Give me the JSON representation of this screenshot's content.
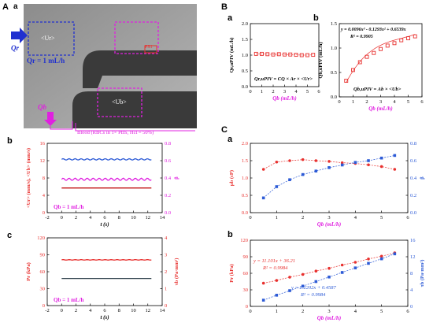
{
  "panel_labels": {
    "A": "A",
    "Aa": "a",
    "Ab": "b",
    "Ac": "c",
    "B": "B",
    "Ba": "a",
    "Bb": "b",
    "C": "C",
    "Ca": "a",
    "Cb": "b"
  },
  "micrograph": {
    "ur_box": "<Ur>",
    "ub_box": "<Ub>",
    "qr_arrow": "Qr",
    "qr_text": "Qr = 1 mL/h",
    "qb_arrow": "Qb",
    "blood_text": "Blood (RBCs in 1× PBS, Hct = 50%)",
    "pressure_box": "PS1"
  },
  "colors": {
    "red": "#e8312f",
    "blue": "#2d5bd6",
    "magenta": "#e020e0",
    "dark": "#3a4a55",
    "box_blue": "#2030d0"
  },
  "chart_data": [
    {
      "id": "Ab",
      "type": "line",
      "xlabel": "t (s)",
      "ylabel_left": "<Ur> (mm/s), <Ub> (mm/s)",
      "ylabel_right": "β",
      "xlim": [
        -2,
        14
      ],
      "ylim_left": [
        0,
        16
      ],
      "ylim_right": [
        0,
        0.8
      ],
      "xticks": [
        "-2",
        "0",
        "2",
        "4",
        "6",
        "8",
        "10",
        "12",
        "14"
      ],
      "yticks_left": [
        "0",
        "4",
        "8",
        "12",
        "16"
      ],
      "yticks_right": [
        "0.0",
        "0.2",
        "0.4",
        "0.6",
        "0.8"
      ],
      "annotation": "Qb = 1 mL/h",
      "series": [
        {
          "axis": "left",
          "color": "#2d5bd6",
          "mean": 12.3,
          "amplitude": 0.15,
          "x": [
            0,
            12.5
          ]
        },
        {
          "axis": "left",
          "color": "#e020e0",
          "mean": 7.7,
          "amplitude": 0.25,
          "x": [
            0,
            12.5
          ]
        },
        {
          "axis": "right",
          "color": "#c01010",
          "mean": 0.285,
          "amplitude": 0.0,
          "x": [
            0,
            12.5
          ]
        }
      ]
    },
    {
      "id": "Ac",
      "type": "line",
      "xlabel": "t (s)",
      "ylabel_left": "Pr (kPa)",
      "ylabel_right": "τb (Pa·mm²)",
      "xlim": [
        -2,
        14
      ],
      "ylim_left": [
        0,
        120
      ],
      "ylim_right": [
        0,
        4
      ],
      "xticks": [
        "-2",
        "0",
        "2",
        "4",
        "6",
        "8",
        "10",
        "12",
        "14"
      ],
      "yticks_left": [
        "0",
        "30",
        "60",
        "90",
        "120"
      ],
      "yticks_right": [
        "0",
        "1",
        "2",
        "3",
        "4"
      ],
      "annotation": "Qb = 1 mL/h",
      "series": [
        {
          "axis": "left",
          "color": "#e8312f",
          "mean": 81,
          "amplitude": 0.4,
          "x": [
            0,
            12.5
          ]
        },
        {
          "axis": "right",
          "color": "#3a4a55",
          "mean": 1.6,
          "amplitude": 0.0,
          "x": [
            0,
            12.5
          ]
        }
      ]
    },
    {
      "id": "Ba",
      "type": "scatter",
      "xlabel": "Qb (mL/h)",
      "ylabel": "Qr,uPIV (mL/h)",
      "xlim": [
        0,
        6
      ],
      "ylim": [
        0,
        2
      ],
      "xticks": [
        "0",
        "1",
        "2",
        "3",
        "4",
        "5",
        "6"
      ],
      "yticks": [
        "0.0",
        "0.5",
        "1.0",
        "1.5",
        "2.0"
      ],
      "equation": "Qr,uPIV = CQ × Ar × <Ur>",
      "series": [
        {
          "color": "#e8312f",
          "x": [
            0.5,
            1,
            1.5,
            2,
            2.5,
            3,
            3.5,
            4,
            4.5,
            5,
            5.5
          ],
          "y": [
            1.04,
            1.04,
            1.03,
            1.02,
            1.03,
            1.02,
            1.02,
            1.01,
            1.0,
            1.0,
            1.01
          ]
        }
      ]
    },
    {
      "id": "Bb",
      "type": "scatter",
      "xlabel": "Qb (mL/h)",
      "ylabel": "Qb,uPIV (mL/h)",
      "xlim": [
        0,
        6
      ],
      "ylim": [
        0,
        1.5
      ],
      "xticks": [
        "0",
        "1",
        "2",
        "3",
        "4",
        "5",
        "6"
      ],
      "yticks": [
        "0.0",
        "0.5",
        "1.0",
        "1.5"
      ],
      "equation": "y = 0.0096x³ - 0.1293x² + 0.6539x",
      "r2": "R² = 0.9905",
      "formula": "Qb,uPIV = Ab × <Ub>",
      "series": [
        {
          "color": "#e8312f",
          "x": [
            0.5,
            1,
            1.5,
            2,
            2.5,
            3,
            3.5,
            4,
            4.5,
            5,
            5.5
          ],
          "y": [
            0.33,
            0.55,
            0.71,
            0.82,
            0.9,
            0.98,
            1.05,
            1.1,
            1.16,
            1.2,
            1.24
          ]
        }
      ]
    },
    {
      "id": "Ca",
      "type": "line",
      "xlabel": "Qb (mL/h)",
      "ylabel_left": "μb (cP)",
      "ylabel_right": "β",
      "xlim": [
        0,
        6
      ],
      "ylim_left": [
        0,
        2.0
      ],
      "ylim_right": [
        0,
        0.8
      ],
      "xticks": [
        "0",
        "1",
        "2",
        "3",
        "4",
        "5",
        "6"
      ],
      "yticks_left": [
        "0.0",
        "0.5",
        "1.0",
        "1.5",
        "2.0"
      ],
      "yticks_right": [
        "0.0",
        "0.2",
        "0.4",
        "0.6",
        "0.8"
      ],
      "series": [
        {
          "axis": "left",
          "color": "#e8312f",
          "x": [
            0.5,
            1,
            1.5,
            2,
            2.5,
            3,
            3.5,
            4,
            4.5,
            5,
            5.5
          ],
          "y": [
            1.25,
            1.46,
            1.5,
            1.53,
            1.5,
            1.48,
            1.44,
            1.42,
            1.38,
            1.33,
            1.25
          ]
        },
        {
          "axis": "right",
          "color": "#2d5bd6",
          "x": [
            0.5,
            1,
            1.5,
            2,
            2.5,
            3,
            3.5,
            4,
            4.5,
            5,
            5.5
          ],
          "y": [
            0.17,
            0.3,
            0.38,
            0.44,
            0.48,
            0.52,
            0.55,
            0.58,
            0.6,
            0.63,
            0.66
          ]
        }
      ]
    },
    {
      "id": "Cb",
      "type": "line",
      "xlabel": "Qb (mL/h)",
      "ylabel_left": "Pr (kPa)",
      "ylabel_right": "τb (Pa·mm²)",
      "xlim": [
        0,
        6
      ],
      "ylim_left": [
        0,
        120
      ],
      "ylim_right": [
        0,
        16
      ],
      "xticks": [
        "0",
        "1",
        "2",
        "3",
        "4",
        "5",
        "6"
      ],
      "yticks_left": [
        "0",
        "30",
        "60",
        "90",
        "120"
      ],
      "yticks_right": [
        "0",
        "4",
        "8",
        "12",
        "16"
      ],
      "eq_red": "y = 11.101x + 36.21",
      "r2_red": "R² = 0.9984",
      "eq_blue": "y = 2.2202x + 0.4587",
      "r2_blue": "R² = 0.9984",
      "series": [
        {
          "axis": "left",
          "color": "#e8312f",
          "x": [
            0.5,
            1,
            1.5,
            2,
            2.5,
            3,
            3.5,
            4,
            4.5,
            5,
            5.5
          ],
          "y": [
            42,
            47,
            53,
            58,
            64,
            69,
            75,
            80,
            86,
            91,
            97
          ]
        },
        {
          "axis": "right",
          "color": "#2d5bd6",
          "x": [
            0.5,
            1,
            1.5,
            2,
            2.5,
            3,
            3.5,
            4,
            4.5,
            5,
            5.5
          ],
          "y": [
            1.5,
            2.7,
            3.8,
            4.9,
            6.0,
            7.1,
            8.2,
            9.3,
            10.4,
            11.5,
            12.7
          ]
        }
      ]
    }
  ]
}
